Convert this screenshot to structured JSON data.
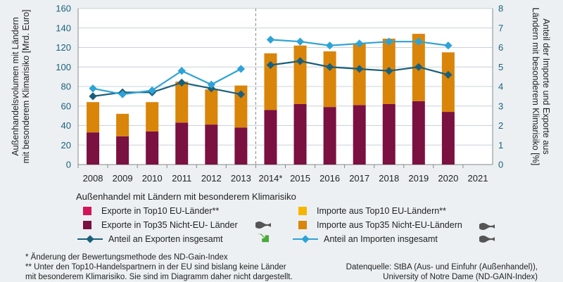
{
  "chart_data": {
    "type": "bar+line",
    "categories": [
      "2008",
      "2009",
      "2010",
      "2011",
      "2012",
      "2013",
      "2014*",
      "2015",
      "2016",
      "2017",
      "2018",
      "2019",
      "2020",
      "2021"
    ],
    "series": [
      {
        "name": "Exporte in Top10 EU-Länder**",
        "type": "bar",
        "axis": "left",
        "color": "#d4145a",
        "values": [
          0,
          0,
          0,
          0,
          0,
          0,
          0,
          0,
          0,
          0,
          0,
          0,
          0,
          null
        ]
      },
      {
        "name": "Exporte in Top35 Nicht-EU- Länder",
        "type": "bar",
        "axis": "left",
        "color": "#7a1140",
        "values": [
          33,
          29,
          34,
          43,
          41,
          38,
          56,
          62,
          59,
          61,
          62,
          65,
          54,
          null
        ]
      },
      {
        "name": "Importe aus Top10 EU-Ländern**",
        "type": "bar",
        "axis": "left",
        "color": "#f7b500",
        "values": [
          0,
          0,
          0,
          0,
          0,
          0,
          0,
          0,
          0,
          0,
          0,
          0,
          0,
          null
        ]
      },
      {
        "name": "Importe aus Top35 Nicht-EU-Ländern",
        "type": "bar",
        "axis": "left",
        "color": "#d9850a",
        "values": [
          31,
          23,
          30,
          42,
          36,
          43,
          58,
          60,
          57,
          63,
          67,
          69,
          61,
          null
        ]
      },
      {
        "name": "Anteil an Exporten insgesamt",
        "type": "line",
        "axis": "right",
        "color": "#1a5f7a",
        "values": [
          3.5,
          3.7,
          3.7,
          4.2,
          3.9,
          3.6,
          5.1,
          5.3,
          5.0,
          4.9,
          4.8,
          5.0,
          4.6,
          null
        ]
      },
      {
        "name": "Anteil an Importen insgesamt",
        "type": "line",
        "axis": "right",
        "color": "#2ea3d6",
        "values": [
          3.9,
          3.6,
          3.8,
          4.8,
          4.1,
          4.9,
          6.4,
          6.3,
          6.1,
          6.2,
          6.3,
          6.3,
          6.1,
          null
        ]
      }
    ],
    "y_left": {
      "label_line1": "Außenhandelsvolumen mit Ländern",
      "label_line2": "mit besonderem Klimarisiko [Mrd. Euro]",
      "min": 0,
      "max": 160,
      "ticks": [
        "0",
        "20",
        "40",
        "60",
        "80",
        "100",
        "120",
        "140",
        "160"
      ]
    },
    "y_right": {
      "label_line1": "Anteil der Importe und Exporte aus",
      "label_line2": "Ländern mit besonderem Klimarisiko [%]",
      "min": 0,
      "max": 8,
      "ticks": [
        "0",
        "1",
        "2",
        "3",
        "4",
        "5",
        "6",
        "7",
        "8"
      ]
    },
    "break_after_index": 5,
    "grid": true,
    "legend_position": "bottom"
  },
  "legend": {
    "title": "Außenhandel mit Ländern mit besonderem Klimarisiko",
    "trend_icons": [
      "wave-neutral",
      "wave-neutral",
      "arrow-down-right",
      "wave-neutral"
    ]
  },
  "footnotes": {
    "line1": "* Änderung der Bewertungsmethode des ND-Gain-Index",
    "line2": "** Unter den Top10-Handelspartnern in der EU sind bislang keine Länder",
    "line3": "mit besonderem Klimarisiko. Sie sind im Diagramm daher nicht dargestellt."
  },
  "source": {
    "line1": "Datenquelle: StBA (Aus- und Einfuhr (Außenhandel)),",
    "line2": "University of Notre Dame (ND-GAIN-Index)"
  },
  "colors": {
    "background": "#ecf0f3",
    "grid": "#c9d3da",
    "axis_text": "#1a5f7a",
    "trend_green": "#4aa83a",
    "trend_gray": "#555555"
  }
}
